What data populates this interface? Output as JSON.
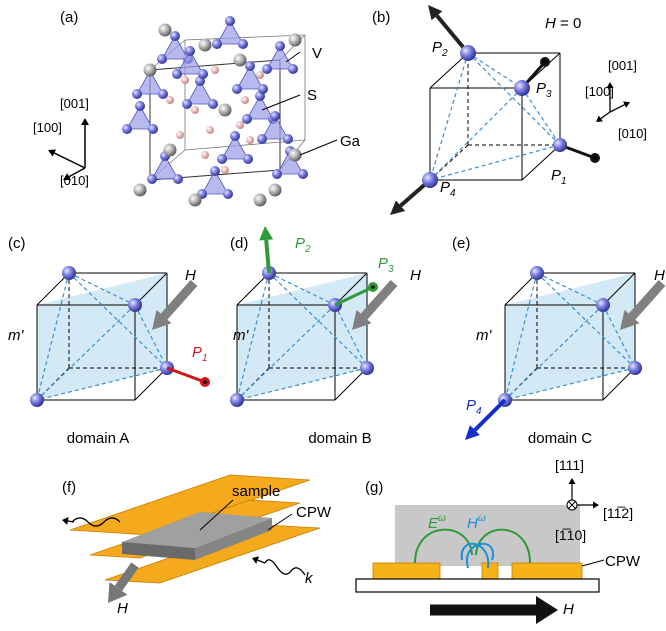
{
  "panel_a": {
    "label": "(a)",
    "atoms": [
      "V",
      "S",
      "Ga"
    ],
    "axes": [
      "[001]",
      "[100]",
      "[010]"
    ]
  },
  "panel_b": {
    "label": "(b)",
    "field": {
      "symbol": "H",
      "value": "= 0"
    },
    "points": [
      {
        "letter": "P",
        "sub": "2"
      },
      {
        "letter": "P",
        "sub": "3"
      },
      {
        "letter": "P",
        "sub": "1"
      },
      {
        "letter": "P",
        "sub": "4"
      }
    ],
    "axes": [
      "[001]",
      "[100]",
      "[010]"
    ]
  },
  "panel_c": {
    "label": "(c)",
    "field": "H",
    "plane": "m'",
    "polarizations": [
      {
        "letter": "P",
        "sub": "1"
      }
    ],
    "domain": "domain A"
  },
  "panel_d": {
    "label": "(d)",
    "field": "H",
    "plane": "m'",
    "polarizations": [
      {
        "letter": "P",
        "sub": "2"
      },
      {
        "letter": "P",
        "sub": "3"
      }
    ],
    "domain": "domain B"
  },
  "panel_e": {
    "label": "(e)",
    "field": "H",
    "plane": "m'",
    "polarizations": [
      {
        "letter": "P",
        "sub": "4"
      }
    ],
    "domain": "domain C"
  },
  "panel_f": {
    "label": "(f)",
    "sample": "sample",
    "cpw": "CPW",
    "field": "H",
    "wave": "k"
  },
  "panel_g": {
    "label": "(g)",
    "directions": [
      "[111]",
      "[11̅2]",
      "[1̅10]"
    ],
    "efield": {
      "letter": "E",
      "sup": "ω"
    },
    "hfield": {
      "letter": "H",
      "sup": "ω"
    },
    "cpw": "CPW",
    "field": "H"
  }
}
